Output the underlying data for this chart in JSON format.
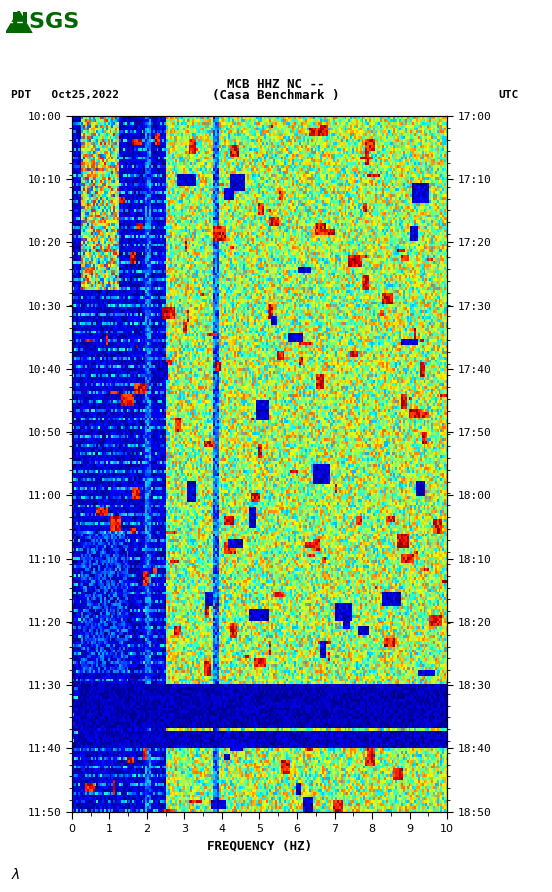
{
  "title_line1": "MCB HHZ NC --",
  "title_line2": "(Casa Benchmark )",
  "left_label": "PDT   Oct25,2022",
  "right_label": "UTC",
  "xlabel": "FREQUENCY (HZ)",
  "freq_min": 0,
  "freq_max": 10,
  "time_left_start": "10:00",
  "time_left_end": "11:50",
  "time_right_start": "17:00",
  "time_right_end": "18:50",
  "time_left_ticks": [
    "10:00",
    "10:10",
    "10:20",
    "10:30",
    "10:40",
    "10:50",
    "11:00",
    "11:10",
    "11:20",
    "11:30",
    "11:40",
    "11:50"
  ],
  "time_right_ticks": [
    "17:00",
    "17:10",
    "17:20",
    "17:30",
    "17:40",
    "17:50",
    "18:00",
    "18:10",
    "18:20",
    "18:30",
    "18:40",
    "18:50"
  ],
  "fig_width": 5.52,
  "fig_height": 8.92,
  "bg_color": "#ffffff",
  "spectrogram_cmap": "jet",
  "blue_stripe_color": "#0000cc",
  "dark_red_color": "#8b0000",
  "n_freq_bins": 200,
  "n_time_bins": 240,
  "seed": 42
}
